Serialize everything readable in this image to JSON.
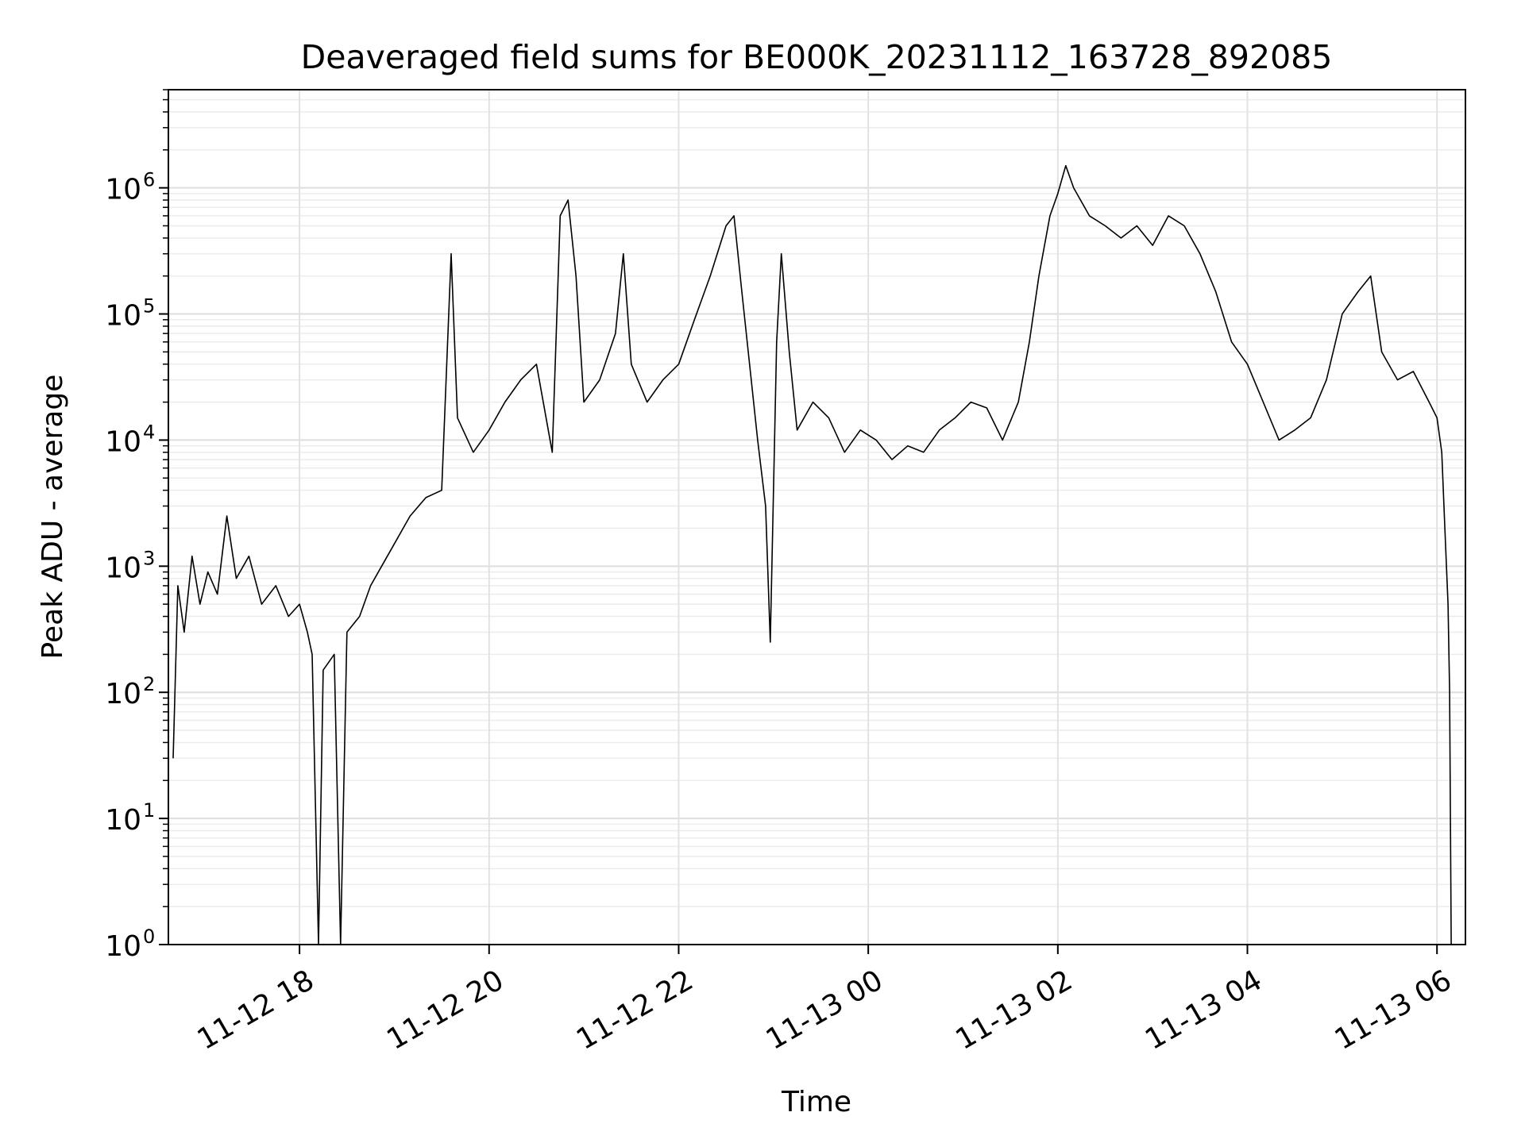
{
  "chart_data": {
    "type": "line",
    "title": "Deaveraged field sums for BE000K_20231112_163728_892085",
    "xlabel": "Time",
    "ylabel": "Peak ADU - average",
    "yscale": "log",
    "ylim": [
      1,
      6000000
    ],
    "xlim": [
      "2023-11-12 16:37",
      "2023-11-13 06:18"
    ],
    "grid": true,
    "x_ticks": [
      "11-12 18",
      "11-12 20",
      "11-12 22",
      "11-13 00",
      "11-13 02",
      "11-13 04",
      "11-13 06"
    ],
    "x_tick_times": [
      "2023-11-12 18:00",
      "2023-11-12 20:00",
      "2023-11-12 22:00",
      "2023-11-13 00:00",
      "2023-11-13 02:00",
      "2023-11-13 04:00",
      "2023-11-13 06:00"
    ],
    "y_ticks": [
      {
        "base": "10",
        "exp": "0"
      },
      {
        "base": "10",
        "exp": "1"
      },
      {
        "base": "10",
        "exp": "2"
      },
      {
        "base": "10",
        "exp": "3"
      },
      {
        "base": "10",
        "exp": "4"
      },
      {
        "base": "10",
        "exp": "5"
      },
      {
        "base": "10",
        "exp": "6"
      }
    ],
    "y_tick_values": [
      1,
      10,
      100,
      1000,
      10000,
      100000,
      1000000
    ],
    "series": [
      {
        "color": "#000000",
        "points": [
          [
            "2023-11-12 16:40",
            30
          ],
          [
            "2023-11-12 16:43",
            700
          ],
          [
            "2023-11-12 16:47",
            300
          ],
          [
            "2023-11-12 16:52",
            1200
          ],
          [
            "2023-11-12 16:57",
            500
          ],
          [
            "2023-11-12 17:02",
            900
          ],
          [
            "2023-11-12 17:08",
            600
          ],
          [
            "2023-11-12 17:14",
            2500
          ],
          [
            "2023-11-12 17:20",
            800
          ],
          [
            "2023-11-12 17:28",
            1200
          ],
          [
            "2023-11-12 17:36",
            500
          ],
          [
            "2023-11-12 17:45",
            700
          ],
          [
            "2023-11-12 17:53",
            400
          ],
          [
            "2023-11-12 18:00",
            500
          ],
          [
            "2023-11-12 18:05",
            300
          ],
          [
            "2023-11-12 18:08",
            200
          ],
          [
            "2023-11-12 18:12",
            1
          ],
          [
            "2023-11-12 18:15",
            150
          ],
          [
            "2023-11-12 18:22",
            200
          ],
          [
            "2023-11-12 18:26",
            1
          ],
          [
            "2023-11-12 18:30",
            300
          ],
          [
            "2023-11-12 18:38",
            400
          ],
          [
            "2023-11-12 18:45",
            700
          ],
          [
            "2023-11-12 18:52",
            1000
          ],
          [
            "2023-11-12 19:00",
            1500
          ],
          [
            "2023-11-12 19:10",
            2500
          ],
          [
            "2023-11-12 19:20",
            3500
          ],
          [
            "2023-11-12 19:30",
            4000
          ],
          [
            "2023-11-12 19:36",
            300000
          ],
          [
            "2023-11-12 19:40",
            15000
          ],
          [
            "2023-11-12 19:50",
            8000
          ],
          [
            "2023-11-12 20:00",
            12000
          ],
          [
            "2023-11-12 20:10",
            20000
          ],
          [
            "2023-11-12 20:20",
            30000
          ],
          [
            "2023-11-12 20:30",
            40000
          ],
          [
            "2023-11-12 20:40",
            8000
          ],
          [
            "2023-11-12 20:45",
            600000
          ],
          [
            "2023-11-12 20:50",
            800000
          ],
          [
            "2023-11-12 20:55",
            200000
          ],
          [
            "2023-11-12 21:00",
            20000
          ],
          [
            "2023-11-12 21:10",
            30000
          ],
          [
            "2023-11-12 21:20",
            70000
          ],
          [
            "2023-11-12 21:25",
            300000
          ],
          [
            "2023-11-12 21:30",
            40000
          ],
          [
            "2023-11-12 21:40",
            20000
          ],
          [
            "2023-11-12 21:50",
            30000
          ],
          [
            "2023-11-12 22:00",
            40000
          ],
          [
            "2023-11-12 22:10",
            90000
          ],
          [
            "2023-11-12 22:20",
            200000
          ],
          [
            "2023-11-12 22:30",
            500000
          ],
          [
            "2023-11-12 22:35",
            600000
          ],
          [
            "2023-11-12 22:40",
            150000
          ],
          [
            "2023-11-12 22:50",
            10000
          ],
          [
            "2023-11-12 22:55",
            3000
          ],
          [
            "2023-11-12 22:58",
            250
          ],
          [
            "2023-11-12 23:02",
            60000
          ],
          [
            "2023-11-12 23:05",
            300000
          ],
          [
            "2023-11-12 23:10",
            50000
          ],
          [
            "2023-11-12 23:15",
            12000
          ],
          [
            "2023-11-12 23:25",
            20000
          ],
          [
            "2023-11-12 23:35",
            15000
          ],
          [
            "2023-11-12 23:45",
            8000
          ],
          [
            "2023-11-12 23:55",
            12000
          ],
          [
            "2023-11-13 00:05",
            10000
          ],
          [
            "2023-11-13 00:15",
            7000
          ],
          [
            "2023-11-13 00:25",
            9000
          ],
          [
            "2023-11-13 00:35",
            8000
          ],
          [
            "2023-11-13 00:45",
            12000
          ],
          [
            "2023-11-13 00:55",
            15000
          ],
          [
            "2023-11-13 01:05",
            20000
          ],
          [
            "2023-11-13 01:15",
            18000
          ],
          [
            "2023-11-13 01:25",
            10000
          ],
          [
            "2023-11-13 01:35",
            20000
          ],
          [
            "2023-11-13 01:42",
            60000
          ],
          [
            "2023-11-13 01:48",
            200000
          ],
          [
            "2023-11-13 01:55",
            600000
          ],
          [
            "2023-11-13 02:00",
            900000
          ],
          [
            "2023-11-13 02:05",
            1500000
          ],
          [
            "2023-11-13 02:10",
            1000000
          ],
          [
            "2023-11-13 02:20",
            600000
          ],
          [
            "2023-11-13 02:30",
            500000
          ],
          [
            "2023-11-13 02:40",
            400000
          ],
          [
            "2023-11-13 02:50",
            500000
          ],
          [
            "2023-11-13 03:00",
            350000
          ],
          [
            "2023-11-13 03:10",
            600000
          ],
          [
            "2023-11-13 03:20",
            500000
          ],
          [
            "2023-11-13 03:30",
            300000
          ],
          [
            "2023-11-13 03:40",
            150000
          ],
          [
            "2023-11-13 03:50",
            60000
          ],
          [
            "2023-11-13 04:00",
            40000
          ],
          [
            "2023-11-13 04:10",
            20000
          ],
          [
            "2023-11-13 04:20",
            10000
          ],
          [
            "2023-11-13 04:30",
            12000
          ],
          [
            "2023-11-13 04:40",
            15000
          ],
          [
            "2023-11-13 04:50",
            30000
          ],
          [
            "2023-11-13 05:00",
            100000
          ],
          [
            "2023-11-13 05:10",
            150000
          ],
          [
            "2023-11-13 05:18",
            200000
          ],
          [
            "2023-11-13 05:25",
            50000
          ],
          [
            "2023-11-13 05:35",
            30000
          ],
          [
            "2023-11-13 05:45",
            35000
          ],
          [
            "2023-11-13 05:55",
            20000
          ],
          [
            "2023-11-13 06:00",
            15000
          ],
          [
            "2023-11-13 06:03",
            8000
          ],
          [
            "2023-11-13 06:05",
            2000
          ],
          [
            "2023-11-13 06:07",
            500
          ],
          [
            "2023-11-13 06:08",
            100
          ],
          [
            "2023-11-13 06:09",
            1
          ]
        ]
      }
    ]
  }
}
